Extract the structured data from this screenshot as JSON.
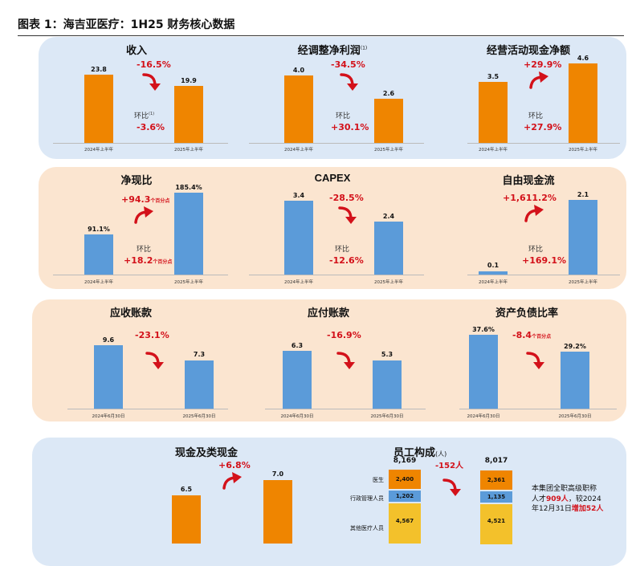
{
  "header": {
    "title": "图表 1：海吉亚医疗：1H25 财务核心数据"
  },
  "colors": {
    "orange": "#ef8500",
    "blue_bar": "#5b9bd9",
    "red": "#d3111a",
    "panel_blue": "#dce8f6",
    "panel_peach": "#fbe5d0"
  },
  "icons": {
    "trend_arrow": "curved-red-arrow-icon"
  },
  "labels": {
    "half_2024": "2024年上半年",
    "half_2025": "2025年上半年",
    "jun_2024": "2024年6月30日",
    "jun_2025": "2025年6月30日",
    "qoq": "环比",
    "pct_points": "个百分点"
  },
  "revenue": {
    "title": "收入",
    "v1": "23.8",
    "v2": "19.9",
    "yoy": "-16.5%",
    "qoq_label": "环比",
    "qoq_note": "(1)",
    "qoq": "-3.6%"
  },
  "adj_profit": {
    "title": "经调整净利润",
    "note": "(1)",
    "v1": "4.0",
    "v2": "2.6",
    "yoy": "-34.5%",
    "qoq": "+30.1%"
  },
  "op_cash": {
    "title": "经营活动现金净额",
    "v1": "3.5",
    "v2": "4.6",
    "yoy": "+29.9%",
    "qoq": "+27.9%"
  },
  "cash_ratio": {
    "title": "净现比",
    "v1": "91.1%",
    "v2": "185.4%",
    "yoy": "+94.3",
    "qoq": "+18.2"
  },
  "capex": {
    "title": "CAPEX",
    "v1": "3.4",
    "v2": "2.4",
    "yoy": "-28.5%",
    "qoq": "-12.6%"
  },
  "fcf": {
    "title": "自由现金流",
    "v1": "0.1",
    "v2": "2.1",
    "yoy": "+1,611.2%",
    "qoq": "+169.1%"
  },
  "receivables": {
    "title": "应收账款",
    "v1": "9.6",
    "v2": "7.3",
    "chg": "-23.1%"
  },
  "payables": {
    "title": "应付账款",
    "v1": "6.3",
    "v2": "5.3",
    "chg": "-16.9%"
  },
  "debt_ratio": {
    "title": "资产负债比率",
    "v1": "37.6%",
    "v2": "29.2%",
    "chg": "-8.4"
  },
  "cash": {
    "title": "现金及类现金",
    "v1": "6.5",
    "v2": "7.0",
    "chg": "+6.8%"
  },
  "staff": {
    "title": "员工构成",
    "unit": "(人)",
    "total1": "8,169",
    "total2": "8,017",
    "chg": "-152人",
    "rows": [
      {
        "label": "医生",
        "v1": "2,400",
        "v2": "2,361"
      },
      {
        "label": "行政管理人员",
        "v1": "1,202",
        "v2": "1,135"
      },
      {
        "label": "其他医疗人员",
        "v1": "4,567",
        "v2": "4,521"
      }
    ],
    "note_l1": "本集团全职高级职称",
    "note_l2a": "人才",
    "note_l2b": "909人",
    "note_l2c": "，较2024",
    "note_l3a": "年12月31日",
    "note_l3b": "增加52人"
  }
}
